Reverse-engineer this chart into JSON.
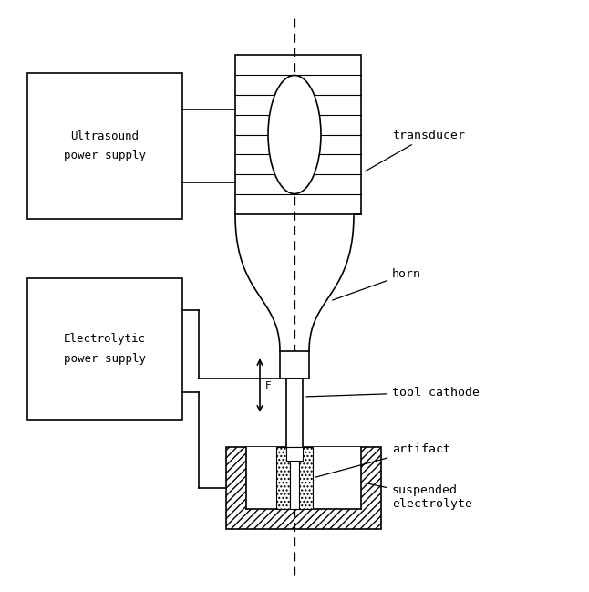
{
  "bg_color": "#ffffff",
  "line_color": "#000000",
  "fig_width": 6.46,
  "fig_height": 6.49,
  "dpi": 100,
  "labels": {
    "transducer": "transducer",
    "horn": "horn",
    "tool_cathode": "tool cathode",
    "artifact": "artifact",
    "suspended_electrolyte": "suspended\nelectrolyte",
    "ultrasound": "Ultrasound\npower supply",
    "electrolytic": "Electrolytic\npower supply"
  }
}
